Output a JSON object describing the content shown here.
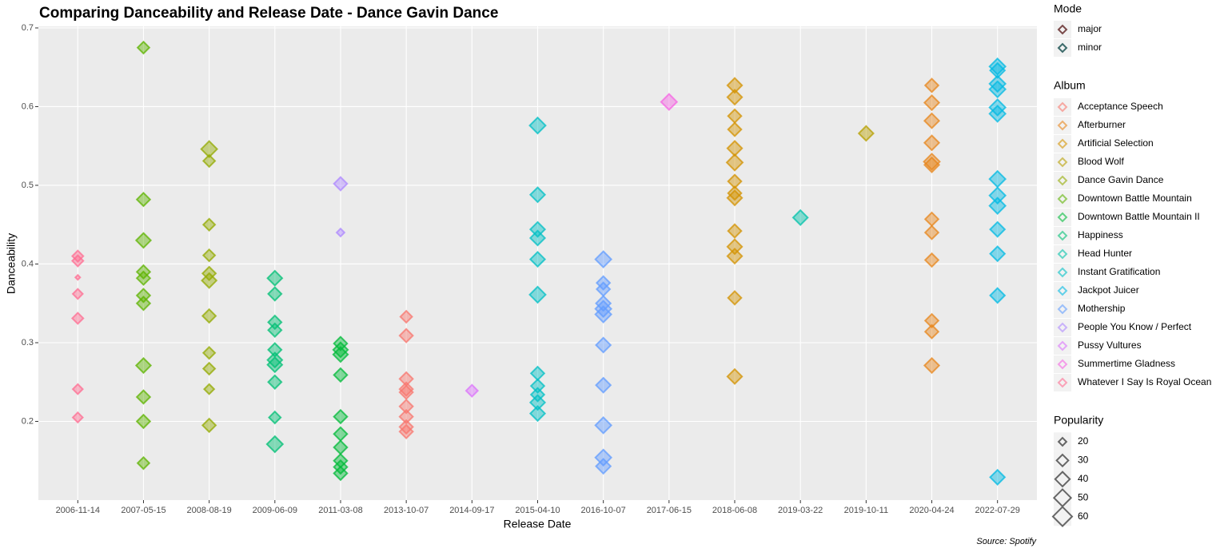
{
  "chart_data": {
    "type": "scatter",
    "title": "Comparing Danceability and Release Date - Dance Gavin Dance",
    "x_label": "Release Date",
    "y_label": "Danceability",
    "source": "Source: Spotify",
    "categories": [
      "2006-11-14",
      "2007-05-15",
      "2008-08-19",
      "2009-06-09",
      "2011-03-08",
      "2013-10-07",
      "2014-09-17",
      "2015-04-10",
      "2016-10-07",
      "2017-06-15",
      "2018-06-08",
      "2019-03-22",
      "2019-10-11",
      "2020-04-24",
      "2022-07-29"
    ],
    "ylim": [
      0.1,
      0.702
    ],
    "yticks": [
      0.2,
      0.3,
      0.4,
      0.5,
      0.6,
      {
        "value": 0.7,
        "label": "0.7"
      }
    ],
    "grid": true,
    "mode_legend": {
      "title": "Mode",
      "items": [
        {
          "name": "major",
          "color": "#7a4a4a"
        },
        {
          "name": "minor",
          "color": "#3d6b6b"
        }
      ]
    },
    "album_legend_title": "Album",
    "size_legend": {
      "title": "Popularity",
      "values": [
        20,
        30,
        40,
        50,
        60
      ]
    },
    "series": [
      {
        "name": "Acceptance Speech",
        "color": "#F8766D",
        "x": [
          "2013-10-07",
          "2013-10-07",
          "2013-10-07",
          "2013-10-07",
          "2013-10-07",
          "2013-10-07",
          "2013-10-07",
          "2013-10-07",
          "2013-10-07"
        ],
        "values": [
          0.333,
          0.309,
          0.254,
          0.241,
          0.237,
          0.219,
          0.206,
          0.193,
          0.187
        ],
        "popularity": [
          30,
          35,
          35,
          35,
          35,
          35,
          35,
          35,
          35
        ]
      },
      {
        "name": "Afterburner",
        "color": "#E7861B",
        "x": [
          "2020-04-24",
          "2020-04-24",
          "2020-04-24",
          "2020-04-24",
          "2020-04-24",
          "2020-04-24",
          "2020-04-24",
          "2020-04-24",
          "2020-04-24",
          "2020-04-24",
          "2020-04-24",
          "2020-04-24"
        ],
        "values": [
          0.627,
          0.605,
          0.582,
          0.554,
          0.53,
          0.526,
          0.457,
          0.44,
          0.405,
          0.328,
          0.314,
          0.271
        ],
        "popularity": [
          35,
          40,
          40,
          40,
          45,
          40,
          35,
          35,
          35,
          35,
          35,
          40
        ]
      },
      {
        "name": "Artificial Selection",
        "color": "#D39200",
        "x": [
          "2018-06-08",
          "2018-06-08",
          "2018-06-08",
          "2018-06-08",
          "2018-06-08",
          "2018-06-08",
          "2018-06-08",
          "2018-06-08",
          "2018-06-08",
          "2018-06-08",
          "2018-06-08",
          "2018-06-08",
          "2018-06-08",
          "2018-06-08"
        ],
        "values": [
          0.627,
          0.612,
          0.588,
          0.571,
          0.547,
          0.529,
          0.505,
          0.49,
          0.484,
          0.442,
          0.422,
          0.41,
          0.357,
          0.257
        ],
        "popularity": [
          40,
          40,
          35,
          35,
          40,
          45,
          35,
          35,
          40,
          35,
          40,
          40,
          35,
          40
        ]
      },
      {
        "name": "Blood Wolf",
        "color": "#B79F00",
        "x": [
          "2019-10-11"
        ],
        "values": [
          0.566
        ],
        "popularity": [
          40
        ]
      },
      {
        "name": "Dance Gavin Dance",
        "color": "#93AA00",
        "x": [
          "2008-08-19",
          "2008-08-19",
          "2008-08-19",
          "2008-08-19",
          "2008-08-19",
          "2008-08-19",
          "2008-08-19",
          "2008-08-19",
          "2008-08-19",
          "2008-08-19",
          "2008-08-19"
        ],
        "values": [
          0.546,
          0.531,
          0.45,
          0.411,
          0.388,
          0.379,
          0.334,
          0.287,
          0.267,
          0.241,
          0.195
        ],
        "popularity": [
          45,
          30,
          30,
          30,
          35,
          40,
          35,
          30,
          30,
          25,
          35
        ]
      },
      {
        "name": "Downtown Battle Mountain",
        "color": "#5EB300",
        "x": [
          "2007-05-15",
          "2007-05-15",
          "2007-05-15",
          "2007-05-15",
          "2007-05-15",
          "2007-05-15",
          "2007-05-15",
          "2007-05-15",
          "2007-05-15",
          "2007-05-15",
          "2007-05-15"
        ],
        "values": [
          0.675,
          0.482,
          0.43,
          0.39,
          0.382,
          0.36,
          0.35,
          0.271,
          0.231,
          0.2,
          0.147
        ],
        "popularity": [
          30,
          35,
          40,
          35,
          35,
          35,
          35,
          40,
          35,
          35,
          30
        ]
      },
      {
        "name": "Downtown Battle Mountain II",
        "color": "#00BA38",
        "x": [
          "2011-03-08",
          "2011-03-08",
          "2011-03-08",
          "2011-03-08",
          "2011-03-08",
          "2011-03-08",
          "2011-03-08",
          "2011-03-08",
          "2011-03-08",
          "2011-03-08"
        ],
        "values": [
          0.299,
          0.291,
          0.285,
          0.259,
          0.206,
          0.184,
          0.167,
          0.15,
          0.142,
          0.134
        ],
        "popularity": [
          35,
          40,
          40,
          35,
          35,
          35,
          35,
          35,
          35,
          35
        ]
      },
      {
        "name": "Happiness",
        "color": "#00BF74",
        "x": [
          "2009-06-09",
          "2009-06-09",
          "2009-06-09",
          "2009-06-09",
          "2009-06-09",
          "2009-06-09",
          "2009-06-09",
          "2009-06-09",
          "2009-06-09",
          "2009-06-09"
        ],
        "values": [
          0.382,
          0.362,
          0.326,
          0.316,
          0.291,
          0.278,
          0.272,
          0.25,
          0.205,
          0.171
        ],
        "popularity": [
          40,
          35,
          35,
          35,
          35,
          40,
          40,
          35,
          30,
          45
        ]
      },
      {
        "name": "Head Hunter",
        "color": "#00C1A9",
        "x": [
          "2019-03-22"
        ],
        "values": [
          0.459
        ],
        "popularity": [
          40
        ]
      },
      {
        "name": "Instant Gratification",
        "color": "#00BFC4",
        "x": [
          "2015-04-10",
          "2015-04-10",
          "2015-04-10",
          "2015-04-10",
          "2015-04-10",
          "2015-04-10",
          "2015-04-10",
          "2015-04-10",
          "2015-04-10",
          "2015-04-10",
          "2015-04-10"
        ],
        "values": [
          0.576,
          0.488,
          0.444,
          0.433,
          0.406,
          0.361,
          0.261,
          0.245,
          0.234,
          0.224,
          0.21
        ],
        "popularity": [
          45,
          40,
          40,
          40,
          40,
          45,
          35,
          35,
          35,
          40,
          40
        ]
      },
      {
        "name": "Jackpot Juicer",
        "color": "#00B9E3",
        "x": [
          "2022-07-29",
          "2022-07-29",
          "2022-07-29",
          "2022-07-29",
          "2022-07-29",
          "2022-07-29",
          "2022-07-29",
          "2022-07-29",
          "2022-07-29",
          "2022-07-29",
          "2022-07-29",
          "2022-07-29",
          "2022-07-29"
        ],
        "values": [
          0.651,
          0.646,
          0.629,
          0.622,
          0.599,
          0.591,
          0.508,
          0.487,
          0.474,
          0.444,
          0.413,
          0.36,
          0.129
        ],
        "popularity": [
          45,
          40,
          45,
          45,
          45,
          45,
          45,
          45,
          45,
          40,
          40,
          40,
          40
        ]
      },
      {
        "name": "Mothership",
        "color": "#619CFF",
        "x": [
          "2016-10-07",
          "2016-10-07",
          "2016-10-07",
          "2016-10-07",
          "2016-10-07",
          "2016-10-07",
          "2016-10-07",
          "2016-10-07",
          "2016-10-07",
          "2016-10-07",
          "2016-10-07"
        ],
        "values": [
          0.406,
          0.376,
          0.368,
          0.35,
          0.343,
          0.336,
          0.297,
          0.246,
          0.195,
          0.154,
          0.143
        ],
        "popularity": [
          45,
          35,
          35,
          40,
          45,
          45,
          40,
          40,
          45,
          45,
          40
        ]
      },
      {
        "name": "People You Know / Perfect",
        "color": "#AE87FF",
        "x": [
          "2011-03-08",
          "2011-03-08"
        ],
        "values": [
          0.502,
          0.44
        ],
        "popularity": [
          35,
          20
        ]
      },
      {
        "name": "Pussy Vultures",
        "color": "#DB72FB",
        "x": [
          "2014-09-17"
        ],
        "values": [
          0.239
        ],
        "popularity": [
          30
        ]
      },
      {
        "name": "Summertime Gladness",
        "color": "#F564E3",
        "x": [
          "2017-06-15"
        ],
        "values": [
          0.606
        ],
        "popularity": [
          45
        ]
      },
      {
        "name": "Whatever I Say Is Royal Ocean",
        "color": "#FF6C91",
        "x": [
          "2006-11-14",
          "2006-11-14",
          "2006-11-14",
          "2006-11-14",
          "2006-11-14",
          "2006-11-14",
          "2006-11-14"
        ],
        "values": [
          0.41,
          0.404,
          0.383,
          0.362,
          0.331,
          0.241,
          0.205
        ],
        "popularity": [
          28,
          28,
          15,
          25,
          28,
          25,
          25
        ]
      }
    ]
  }
}
